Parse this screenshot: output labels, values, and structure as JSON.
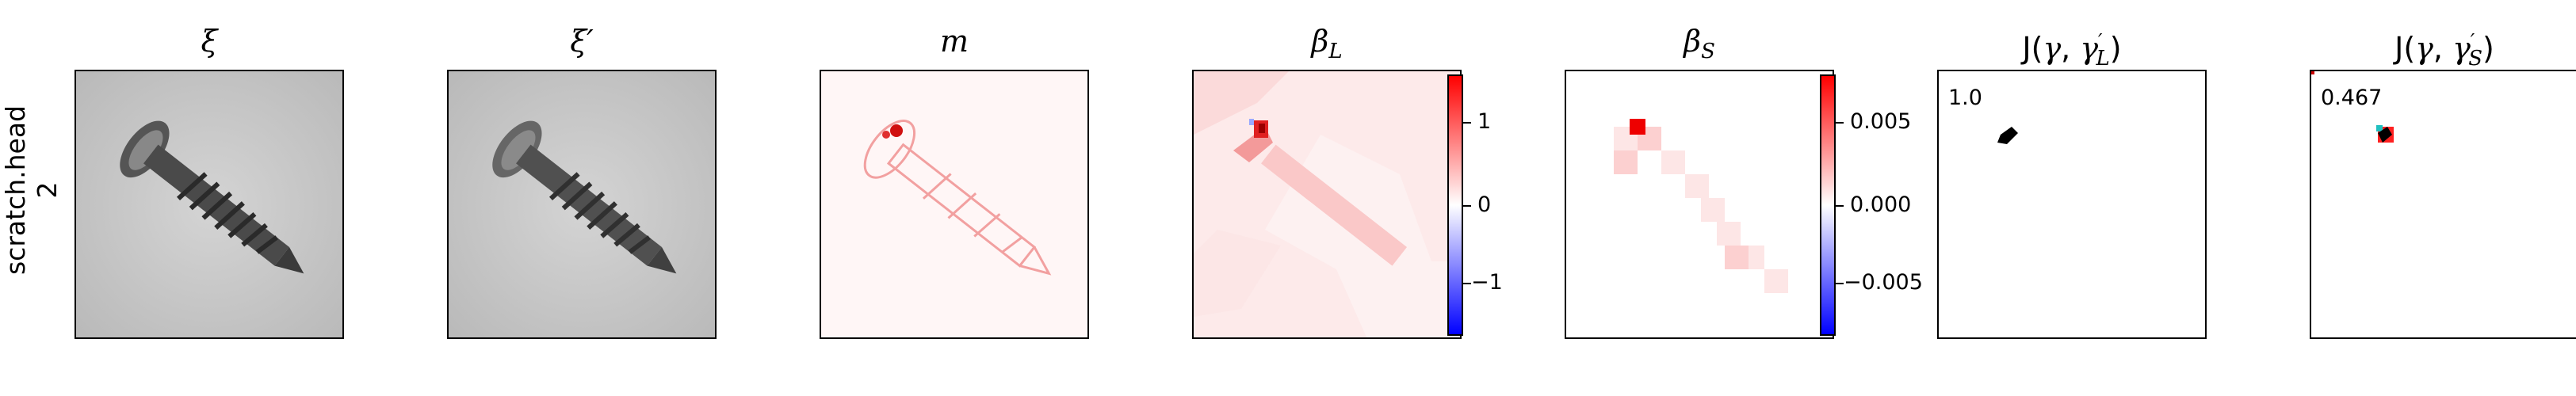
{
  "row_label": {
    "line1": "scratch.head",
    "line2": "2"
  },
  "titles": {
    "xi": "ξ",
    "xi_prime": "ξ′",
    "m": "m",
    "beta_L": {
      "base": "β",
      "sub": "L"
    },
    "beta_S": {
      "base": "β",
      "sub": "S"
    },
    "J_L": {
      "prefix": "J(",
      "gamma": "γ",
      "sep": ", ",
      "gamma2": "γ",
      "sup": "′",
      "sub": "L",
      "suffix": ")"
    },
    "J_S": {
      "prefix": "J(",
      "gamma": "γ",
      "sep": ", ",
      "gamma2": "γ",
      "sup": "′",
      "sub": "S",
      "suffix": ")"
    }
  },
  "colorbar_L": {
    "ticks": [
      "1",
      "0",
      "−1"
    ]
  },
  "colorbar_S": {
    "ticks": [
      "0.005",
      "0.000",
      "−0.005"
    ]
  },
  "jaccard": {
    "L_value": "1.0",
    "S_value": "0.467"
  },
  "colors": {
    "positive": "#ff0000",
    "negative": "#0000ff",
    "neutral": "#ffffff"
  }
}
